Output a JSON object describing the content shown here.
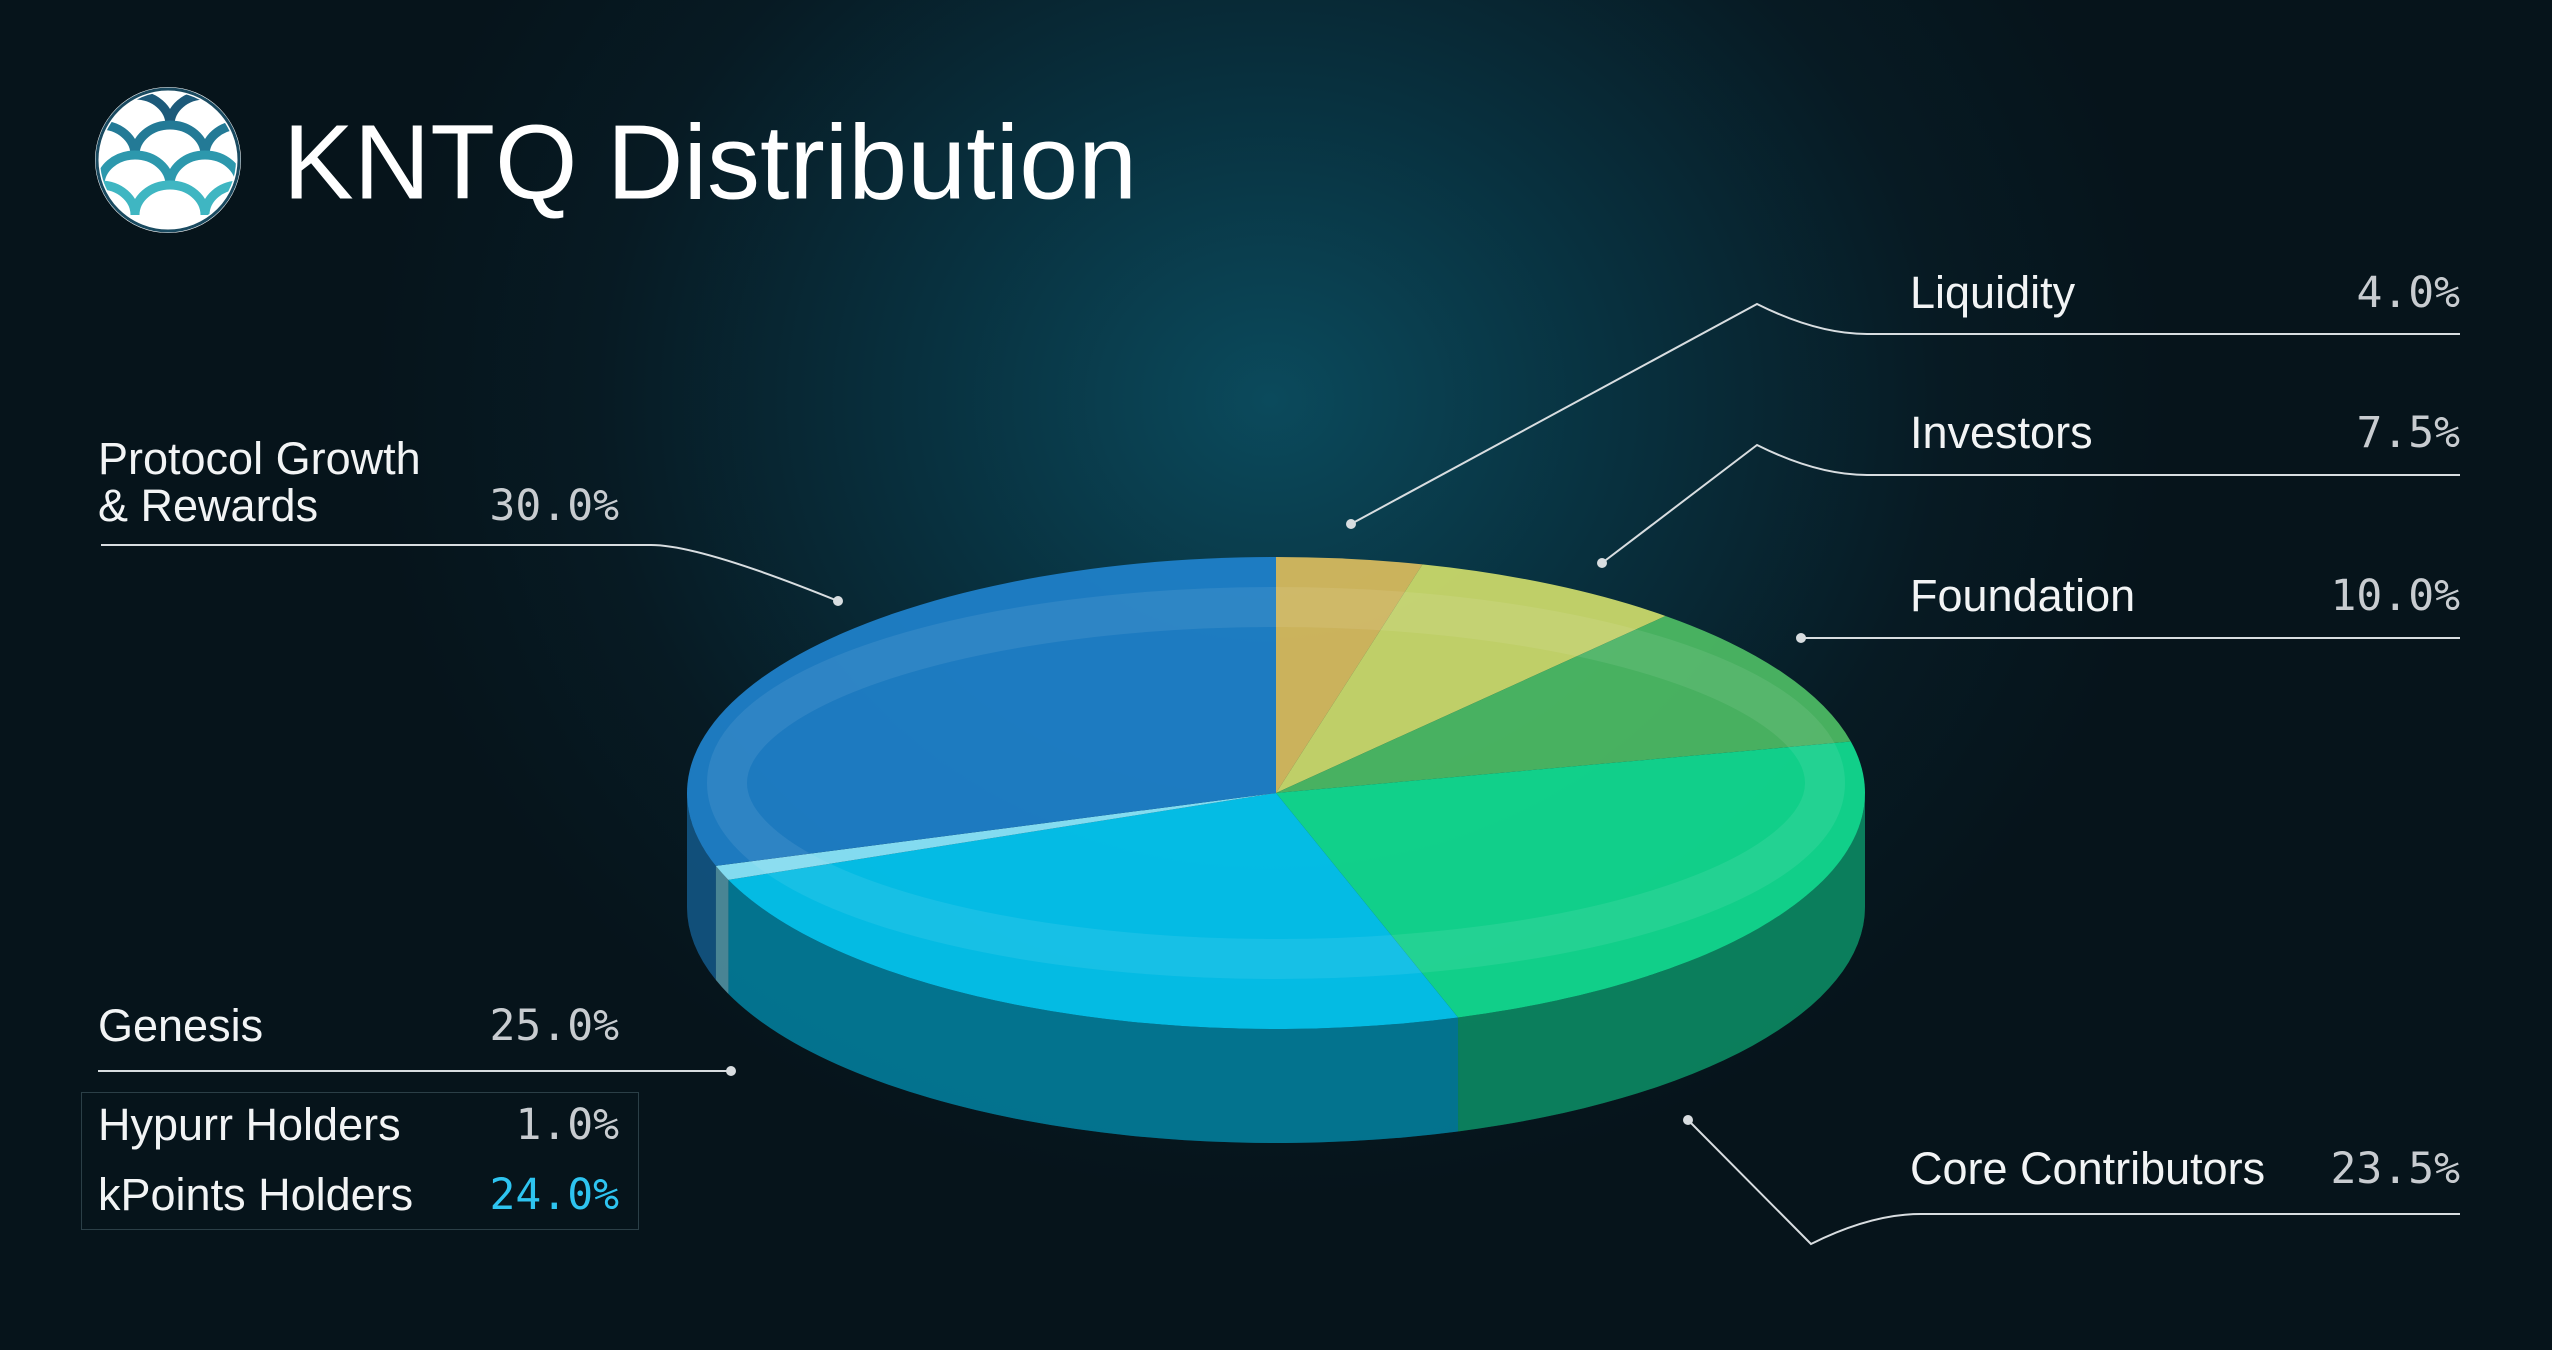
{
  "chart_data": {
    "type": "pie",
    "title": "KNTQ Distribution",
    "slices": [
      {
        "name": "Liquidity",
        "value": 4,
        "value_label": "4.0%",
        "color": "#d6b95e"
      },
      {
        "name": "Investors",
        "value": 7.5,
        "value_label": "7.5%",
        "color": "#c9d86a"
      },
      {
        "name": "Foundation",
        "value": 10,
        "value_label": "10.0%",
        "color": "#4cb863"
      },
      {
        "name": "Core Contributors",
        "value": 23.5,
        "value_label": "23.5%",
        "color": "#12d98f"
      },
      {
        "name": "Genesis",
        "value": 25,
        "value_label": "25.0%",
        "parts": [
          {
            "name": "Hypurr Holders",
            "value": 1,
            "value_label": "1.0%",
            "color": "#8ae6fb"
          },
          {
            "name": "kPoints Holders",
            "value": 24,
            "value_label": "24.0%",
            "color": "#04c4ee"
          }
        ]
      },
      {
        "name": "Protocol Growth & Rewards",
        "value": 30,
        "value_label": "30.0%",
        "color": "#1f7fc8"
      }
    ]
  }
}
